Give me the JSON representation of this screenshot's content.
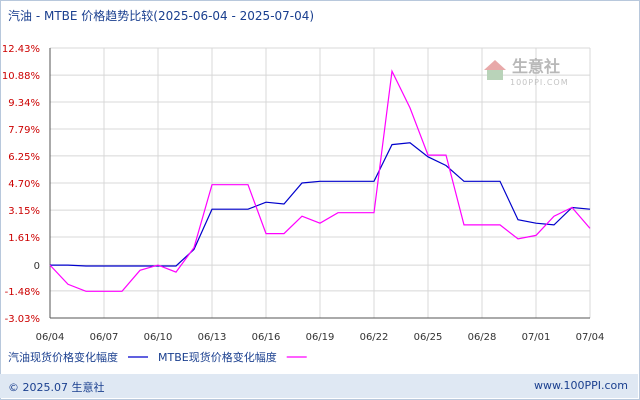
{
  "title": "汽油 - MTBE 价格趋势比较(2025-06-04 - 2025-07-04)",
  "watermark": {
    "name": "生意社",
    "url": "100PPI.COM"
  },
  "footer": {
    "left": "© 2025.07 生意社",
    "right": "www.100PPI.com"
  },
  "colors": {
    "series_gasoline": "#0000cc",
    "series_mtbe": "#ff00ff",
    "tick_labels": "#cc0000",
    "grid": "#d8d8d8",
    "axis": "#555555",
    "text": "#1a3f8f",
    "footer_bg": "#dfe8f3"
  },
  "chart_data": {
    "type": "line",
    "title": "汽油 - MTBE 价格趋势比较(2025-06-04 - 2025-07-04)",
    "x": [
      "06/04",
      "06/05",
      "06/06",
      "06/07",
      "06/08",
      "06/09",
      "06/10",
      "06/11",
      "06/12",
      "06/13",
      "06/14",
      "06/15",
      "06/16",
      "06/17",
      "06/18",
      "06/19",
      "06/20",
      "06/21",
      "06/22",
      "06/23",
      "06/24",
      "06/25",
      "06/26",
      "06/27",
      "06/28",
      "06/29",
      "06/30",
      "07/01",
      "07/02",
      "07/03",
      "07/04"
    ],
    "xticks": [
      "06/04",
      "06/07",
      "06/10",
      "06/13",
      "06/16",
      "06/19",
      "06/22",
      "06/25",
      "06/28",
      "07/01",
      "07/04"
    ],
    "yticks": [
      "12.43%",
      "10.88%",
      "9.34%",
      "7.79%",
      "6.25%",
      "4.70%",
      "3.15%",
      "1.61%",
      "0",
      "-1.48%",
      "-3.03%"
    ],
    "ytick_values": [
      12.43,
      10.88,
      9.34,
      7.79,
      6.25,
      4.7,
      3.15,
      1.61,
      0,
      -1.48,
      -3.03
    ],
    "ylim": [
      -3.03,
      12.43
    ],
    "grid": true,
    "legend_position": "bottom-left",
    "series": [
      {
        "name": "汽油现货价格变化幅度",
        "color": "#0000cc",
        "values": [
          0,
          0,
          -0.05,
          -0.05,
          -0.05,
          -0.05,
          -0.05,
          -0.05,
          0.9,
          3.2,
          3.2,
          3.2,
          3.6,
          3.5,
          4.7,
          4.8,
          4.8,
          4.8,
          4.8,
          6.9,
          7.0,
          6.2,
          5.7,
          4.8,
          4.8,
          4.8,
          2.6,
          2.4,
          2.3,
          3.3,
          3.2
        ]
      },
      {
        "name": "MTBE现货价格变化幅度",
        "color": "#ff00ff",
        "values": [
          0,
          -1.1,
          -1.5,
          -1.5,
          -1.5,
          -0.3,
          0,
          -0.4,
          1.0,
          4.6,
          4.6,
          4.6,
          1.8,
          1.8,
          2.8,
          2.4,
          3.0,
          3.0,
          3.0,
          11.1,
          9.0,
          6.3,
          6.3,
          2.3,
          2.3,
          2.3,
          1.5,
          1.7,
          2.8,
          3.3,
          2.1
        ]
      }
    ]
  }
}
